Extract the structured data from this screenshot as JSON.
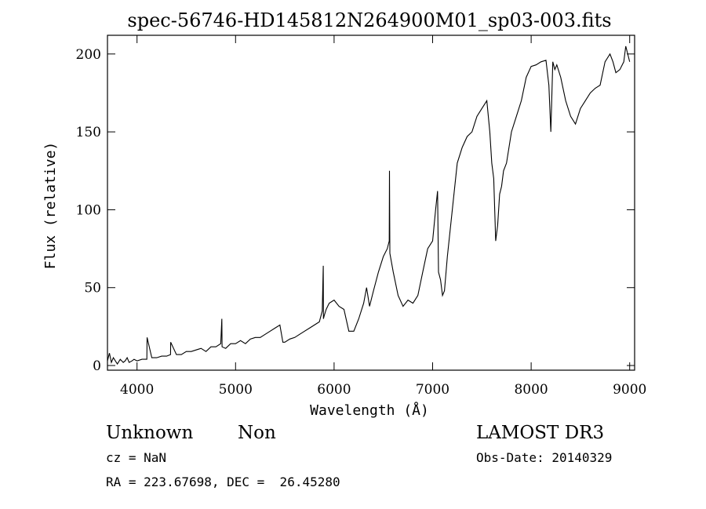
{
  "chart_data": {
    "type": "line",
    "title": "spec-56746-HD145812N264900M01_sp03-003.fits",
    "xlabel": "Wavelength (Å)",
    "ylabel": "Flux (relative)",
    "xlim": [
      3700,
      9050
    ],
    "ylim": [
      -3,
      212
    ],
    "xticks": [
      4000,
      5000,
      6000,
      7000,
      8000,
      9000
    ],
    "yticks": [
      0,
      50,
      100,
      150,
      200
    ],
    "grid": false,
    "series": [
      {
        "x": [
          3700,
          3720,
          3740,
          3760,
          3780,
          3800,
          3830,
          3860,
          3880,
          3900,
          3920,
          3950,
          3970,
          4000,
          4050,
          4100,
          4102,
          4150,
          4200,
          4250,
          4300,
          4340,
          4342,
          4400,
          4450,
          4500,
          4550,
          4600,
          4650,
          4700,
          4750,
          4800,
          4850,
          4861,
          4863,
          4900,
          4950,
          5000,
          5050,
          5100,
          5150,
          5200,
          5250,
          5300,
          5350,
          5400,
          5450,
          5480,
          5500,
          5550,
          5600,
          5650,
          5700,
          5750,
          5800,
          5850,
          5880,
          5890,
          5892,
          5900,
          5920,
          5950,
          6000,
          6050,
          6100,
          6150,
          6200,
          6250,
          6300,
          6330,
          6360,
          6400,
          6450,
          6500,
          6540,
          6560,
          6562,
          6566,
          6600,
          6650,
          6700,
          6750,
          6800,
          6850,
          6900,
          6950,
          7000,
          7030,
          7050,
          7060,
          7080,
          7100,
          7120,
          7150,
          7200,
          7250,
          7300,
          7350,
          7400,
          7450,
          7500,
          7550,
          7580,
          7600,
          7620,
          7640,
          7660,
          7680,
          7700,
          7720,
          7750,
          7800,
          7850,
          7900,
          7950,
          8000,
          8050,
          8100,
          8150,
          8180,
          8200,
          8220,
          8240,
          8260,
          8300,
          8350,
          8400,
          8450,
          8500,
          8550,
          8600,
          8650,
          8700,
          8750,
          8800,
          8830,
          8860,
          8900,
          8940,
          8960,
          8980,
          9000
        ],
        "y": [
          3,
          8,
          2,
          5,
          3,
          1,
          4,
          2,
          3,
          5,
          2,
          3,
          4,
          3,
          4,
          4,
          18,
          5,
          5,
          6,
          6,
          7,
          15,
          7,
          7,
          9,
          9,
          10,
          11,
          9,
          12,
          12,
          14,
          30,
          12,
          11,
          14,
          14,
          16,
          14,
          17,
          18,
          18,
          20,
          22,
          24,
          26,
          15,
          15,
          17,
          18,
          20,
          22,
          24,
          26,
          28,
          35,
          64,
          30,
          32,
          36,
          40,
          42,
          38,
          36,
          22,
          22,
          30,
          40,
          50,
          38,
          48,
          60,
          70,
          75,
          80,
          125,
          72,
          60,
          45,
          38,
          42,
          40,
          45,
          60,
          75,
          80,
          100,
          112,
          60,
          55,
          45,
          48,
          70,
          100,
          130,
          140,
          147,
          150,
          160,
          165,
          170,
          150,
          130,
          120,
          80,
          90,
          110,
          115,
          125,
          130,
          150,
          160,
          170,
          185,
          192,
          193,
          195,
          196,
          180,
          150,
          195,
          190,
          193,
          185,
          170,
          160,
          155,
          165,
          170,
          175,
          178,
          180,
          195,
          200,
          195,
          188,
          190,
          195,
          205,
          200,
          195
        ]
      }
    ]
  },
  "footer": {
    "object_class": "Unknown",
    "object_subclass": "Non",
    "cz": "cz = NaN",
    "coords": "RA = 223.67698, DEC =  26.45280",
    "survey": "LAMOST DR3",
    "obs_date": "Obs-Date: 20140329"
  }
}
